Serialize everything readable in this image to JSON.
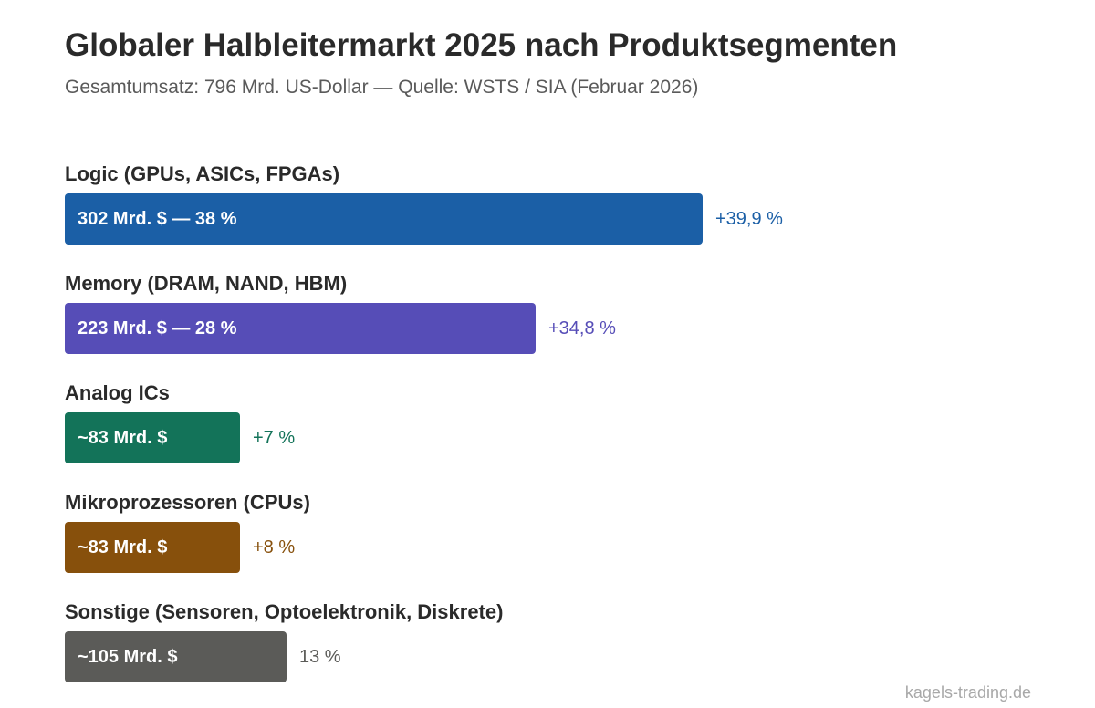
{
  "title": "Globaler Halbleitermarkt 2025 nach Produktsegmenten",
  "subtitle": "Gesamtumsatz: 796 Mrd. US-Dollar — Quelle: WSTS / SIA (Februar 2026)",
  "watermark": "kagels-trading.de",
  "chart_data": {
    "type": "bar",
    "orientation": "horizontal",
    "title": "Globaler Halbleitermarkt 2025 nach Produktsegmenten",
    "subtitle": "Gesamtumsatz: 796 Mrd. US-Dollar — Quelle: WSTS / SIA (Februar 2026)",
    "unit": "Mrd. $",
    "total": 796,
    "categories": [
      "Logic (GPUs, ASICs, FPGAs)",
      "Memory (DRAM, NAND, HBM)",
      "Analog ICs",
      "Mikroprozessoren (CPUs)",
      "Sonstige (Sensoren, Optoelektronik, Diskrete)"
    ],
    "values": [
      302,
      223,
      83,
      83,
      105
    ],
    "bar_labels": [
      "302 Mrd. $ — 38 %",
      "223 Mrd. $ — 28 %",
      "~83 Mrd. $",
      "~83 Mrd. $",
      "~105 Mrd. $"
    ],
    "side_labels": [
      "+39,9 %",
      "+34,8 %",
      "+7 %",
      "+8 %",
      "13 %"
    ],
    "colors": [
      "#1b5fa6",
      "#564db7",
      "#137359",
      "#87500c",
      "#5b5b58"
    ],
    "grid": false,
    "legend": "none"
  }
}
